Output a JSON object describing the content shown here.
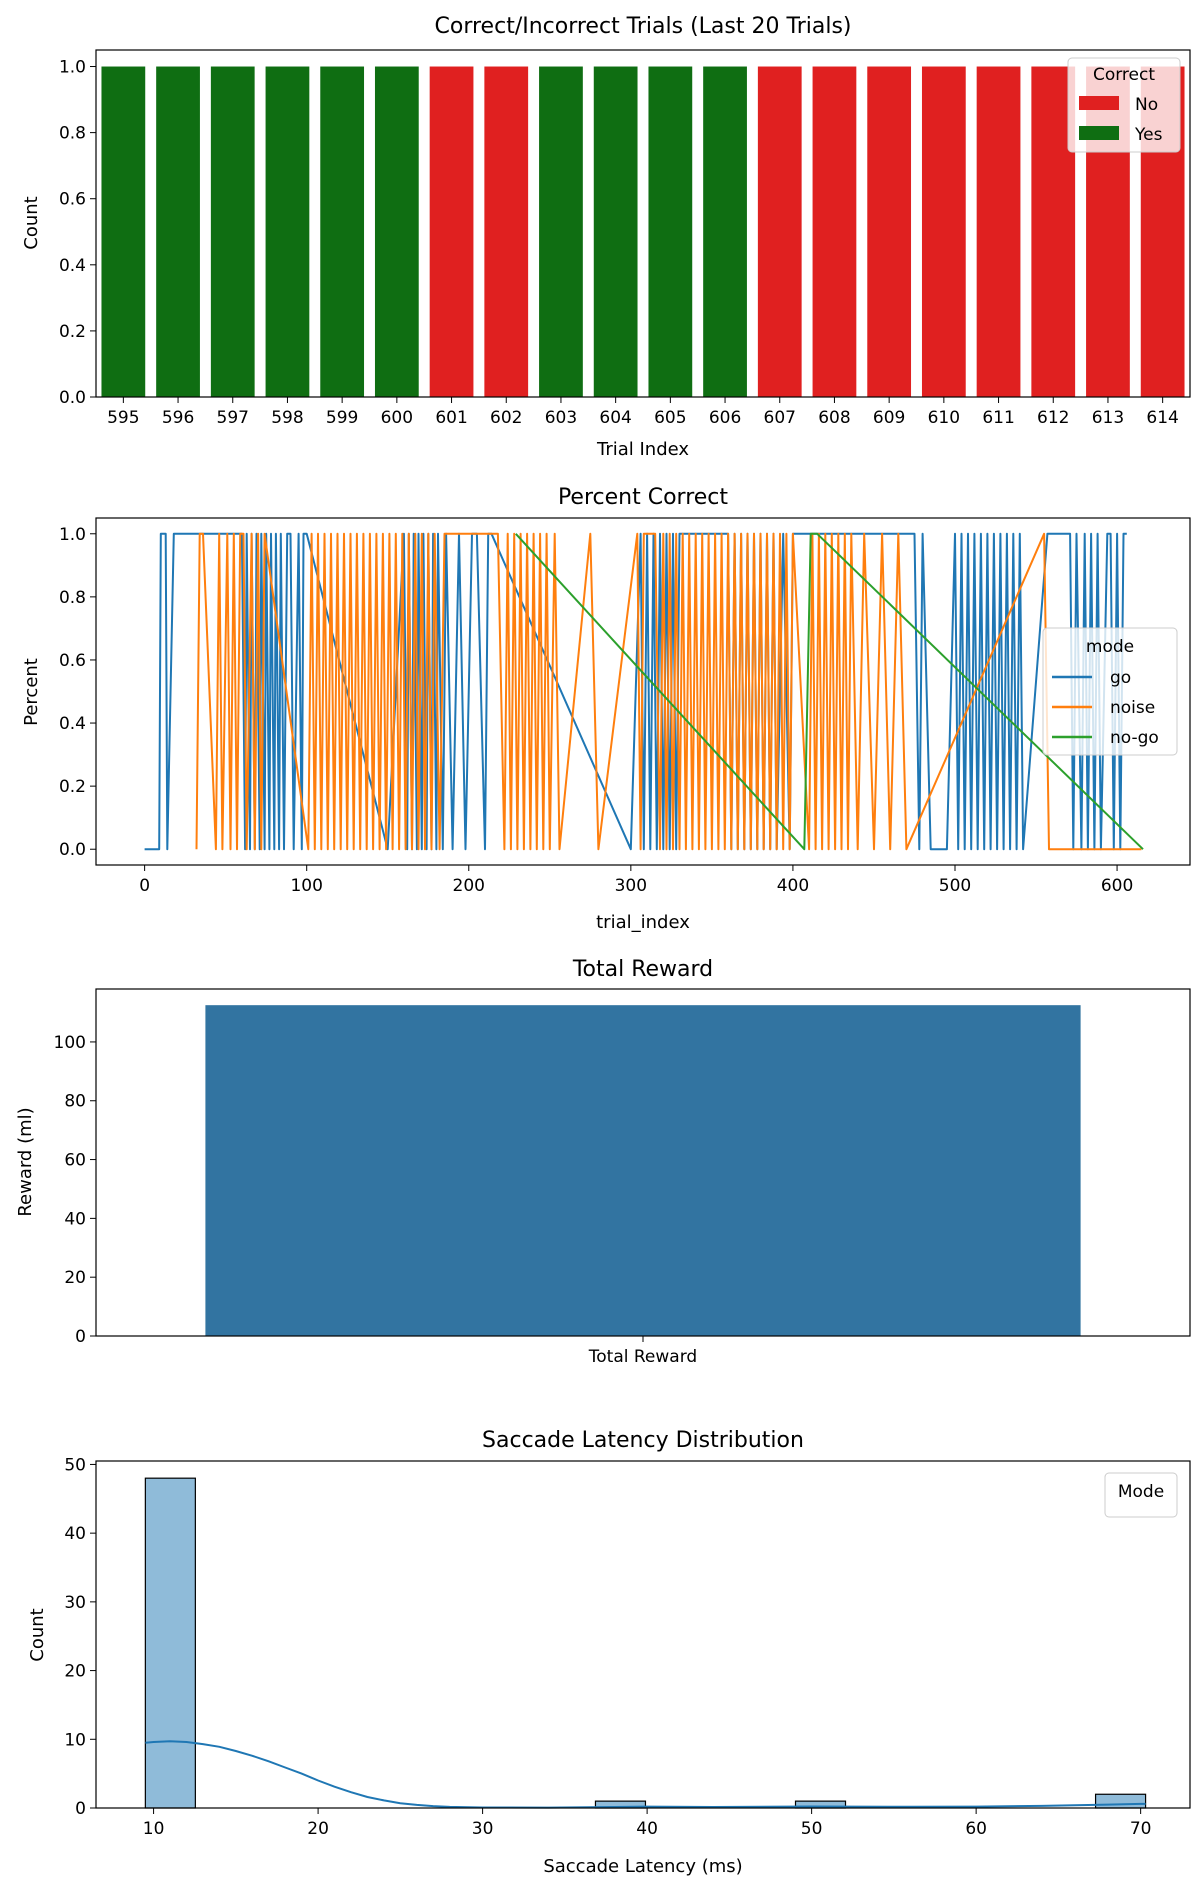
{
  "chart_data": [
    {
      "type": "bar",
      "title": "Correct/Incorrect Trials (Last 20 Trials)",
      "xlabel": "Trial Index",
      "ylabel": "Count",
      "ylim": [
        0,
        1.05
      ],
      "yticks": [
        "0.0",
        "0.2",
        "0.4",
        "0.6",
        "0.8",
        "1.0"
      ],
      "ytick_values": [
        0,
        0.2,
        0.4,
        0.6,
        0.8,
        1.0
      ],
      "categories": [
        "595",
        "596",
        "597",
        "598",
        "599",
        "600",
        "601",
        "602",
        "603",
        "604",
        "605",
        "606",
        "607",
        "608",
        "609",
        "610",
        "611",
        "612",
        "613",
        "614"
      ],
      "values": [
        1,
        1,
        1,
        1,
        1,
        1,
        1,
        1,
        1,
        1,
        1,
        1,
        1,
        1,
        1,
        1,
        1,
        1,
        1,
        1
      ],
      "correct": [
        "Yes",
        "Yes",
        "Yes",
        "Yes",
        "Yes",
        "Yes",
        "No",
        "No",
        "Yes",
        "Yes",
        "Yes",
        "Yes",
        "No",
        "No",
        "No",
        "No",
        "No",
        "No",
        "No",
        "No"
      ],
      "legend": {
        "title": "Correct",
        "placement": "top-right",
        "entries": [
          {
            "label": "No",
            "color": "#e02020"
          },
          {
            "label": "Yes",
            "color": "#0f6e12"
          }
        ]
      }
    },
    {
      "type": "line",
      "title": "Percent Correct",
      "xlabel": "trial_index",
      "ylabel": "Percent",
      "xlim": [
        -30,
        645
      ],
      "ylim": [
        -0.05,
        1.05
      ],
      "xticks": [
        "0",
        "100",
        "200",
        "300",
        "400",
        "500",
        "600"
      ],
      "xtick_values": [
        0,
        100,
        200,
        300,
        400,
        500,
        600
      ],
      "yticks": [
        "0.0",
        "0.2",
        "0.4",
        "0.6",
        "0.8",
        "1.0"
      ],
      "ytick_values": [
        0,
        0.2,
        0.4,
        0.6,
        0.8,
        1.0
      ],
      "legend": {
        "title": "mode",
        "placement": "center-right",
        "entries": [
          {
            "label": "go",
            "color": "#1f77b4"
          },
          {
            "label": "noise",
            "color": "#ff7f0e"
          },
          {
            "label": "no-go",
            "color": "#2ca02c"
          }
        ]
      },
      "series": [
        {
          "name": "go",
          "color": "#1f77b4",
          "x": [
            0,
            9,
            10,
            13,
            14,
            18,
            19,
            60,
            62,
            63,
            65,
            66,
            68,
            69,
            71,
            72,
            74,
            75,
            77,
            78,
            80,
            81,
            83,
            84,
            86,
            88,
            90,
            92,
            95,
            97,
            98,
            100,
            150,
            160,
            162,
            163,
            165,
            166,
            168,
            169,
            171,
            172,
            174,
            175,
            177,
            178,
            180,
            181,
            184,
            186,
            190,
            194,
            198,
            202,
            205,
            210,
            212,
            214,
            300,
            306,
            308,
            310,
            312,
            314,
            316,
            318,
            320,
            322,
            324,
            326,
            328,
            330,
            360,
            362,
            364,
            366,
            368,
            370,
            372,
            374,
            376,
            378,
            380,
            382,
            384,
            386,
            388,
            390,
            394,
            398,
            400,
            475,
            478,
            480,
            485,
            495,
            500,
            502,
            504,
            506,
            508,
            510,
            512,
            514,
            516,
            518,
            520,
            522,
            524,
            526,
            528,
            530,
            532,
            534,
            536,
            538,
            540,
            542,
            557,
            560,
            571,
            573,
            575,
            578,
            580,
            582,
            584,
            586,
            588,
            590,
            594,
            596,
            598,
            600,
            602,
            604,
            606
          ],
          "y": [
            0,
            0,
            1,
            1,
            0,
            1,
            1,
            1,
            0,
            1,
            0,
            1,
            0,
            1,
            0,
            1,
            0,
            1,
            0,
            1,
            0,
            1,
            0,
            1,
            0,
            1,
            1,
            0,
            1,
            0,
            1,
            1,
            0,
            1,
            0,
            1,
            0,
            1,
            0,
            1,
            0,
            1,
            0,
            1,
            0,
            1,
            0,
            1,
            0,
            1,
            0,
            1,
            0,
            1,
            1,
            0,
            1,
            1,
            0,
            1,
            0,
            1,
            0,
            1,
            0,
            1,
            0,
            1,
            0,
            1,
            0,
            1,
            1,
            0,
            1,
            0,
            1,
            0,
            1,
            0,
            1,
            0,
            1,
            0,
            1,
            0,
            1,
            0,
            1,
            0,
            1,
            1,
            0,
            1,
            0,
            0,
            1,
            0,
            1,
            0,
            1,
            0,
            1,
            0,
            1,
            0,
            1,
            0,
            1,
            0,
            1,
            0,
            1,
            0,
            1,
            0,
            1,
            0,
            1,
            1,
            1,
            0,
            1,
            0,
            1,
            0,
            1,
            0,
            1,
            0,
            1,
            1,
            0,
            1,
            0,
            1,
            1
          ]
        },
        {
          "name": "noise",
          "color": "#ff7f0e",
          "x": [
            32,
            34,
            36,
            44,
            46,
            48,
            51,
            53,
            55,
            57,
            59,
            61,
            63,
            66,
            68,
            70,
            72,
            74,
            101,
            103,
            105,
            107,
            109,
            111,
            113,
            115,
            117,
            119,
            121,
            123,
            125,
            127,
            129,
            131,
            133,
            135,
            137,
            139,
            141,
            143,
            145,
            147,
            149,
            151,
            153,
            155,
            157,
            159,
            161,
            163,
            165,
            167,
            169,
            171,
            173,
            175,
            177,
            179,
            182,
            185,
            218,
            222,
            224,
            226,
            228,
            230,
            232,
            234,
            236,
            238,
            240,
            242,
            244,
            246,
            248,
            250,
            253,
            256,
            275,
            280,
            304,
            306,
            308,
            315,
            318,
            320,
            322,
            324,
            326,
            328,
            330,
            332,
            334,
            336,
            338,
            340,
            342,
            344,
            346,
            348,
            350,
            352,
            354,
            356,
            358,
            360,
            362,
            364,
            366,
            368,
            370,
            372,
            374,
            376,
            378,
            380,
            382,
            384,
            386,
            388,
            390,
            392,
            394,
            396,
            398,
            400,
            410,
            412,
            414,
            416,
            418,
            420,
            422,
            424,
            426,
            428,
            430,
            432,
            434,
            436,
            440,
            444,
            450,
            455,
            460,
            465,
            470,
            555,
            558,
            560,
            615
          ],
          "y": [
            0,
            1,
            1,
            0,
            1,
            0,
            1,
            0,
            1,
            0,
            1,
            1,
            0,
            1,
            0,
            1,
            0,
            1,
            0,
            1,
            0,
            1,
            0,
            1,
            0,
            1,
            0,
            1,
            0,
            1,
            0,
            1,
            0,
            1,
            0,
            1,
            0,
            1,
            0,
            1,
            0,
            1,
            0,
            1,
            0,
            1,
            0,
            1,
            0,
            1,
            0,
            1,
            0,
            1,
            0,
            1,
            0,
            1,
            0,
            1,
            1,
            0,
            1,
            0,
            1,
            0,
            1,
            0,
            1,
            0,
            1,
            0,
            1,
            0,
            1,
            0,
            1,
            0,
            1,
            0,
            1,
            0,
            1,
            1,
            0,
            1,
            0,
            1,
            0,
            1,
            0,
            1,
            0,
            1,
            0,
            1,
            0,
            1,
            0,
            1,
            0,
            1,
            0,
            1,
            0,
            1,
            0,
            1,
            0,
            1,
            0,
            1,
            0,
            1,
            0,
            1,
            0,
            1,
            0,
            1,
            0,
            1,
            0,
            1,
            0,
            1,
            0,
            1,
            0,
            1,
            0,
            1,
            0,
            1,
            0,
            1,
            0,
            1,
            0,
            1,
            0,
            1,
            0,
            1,
            0,
            1,
            0,
            1,
            0,
            0,
            0
          ]
        },
        {
          "name": "no-go",
          "color": "#2ca02c",
          "x": [
            229,
            407,
            411,
            415,
            616
          ],
          "y": [
            1,
            0,
            1,
            1,
            0
          ]
        }
      ]
    },
    {
      "type": "bar",
      "title": "Total Reward",
      "xlabel": "",
      "ylabel": "Reward (ml)",
      "ylim": [
        0,
        118
      ],
      "yticks": [
        "0",
        "20",
        "40",
        "60",
        "80",
        "100"
      ],
      "ytick_values": [
        0,
        20,
        40,
        60,
        80,
        100
      ],
      "categories": [
        "Total Reward"
      ],
      "values": [
        112.5
      ],
      "color": "#3274a1"
    },
    {
      "type": "histogram",
      "title": "Saccade Latency Distribution",
      "xlabel": "Saccade Latency (ms)",
      "ylabel": "Count",
      "xlim": [
        6.5,
        73
      ],
      "ylim": [
        0,
        50.5
      ],
      "xticks": [
        "10",
        "20",
        "30",
        "40",
        "50",
        "60",
        "70"
      ],
      "xtick_values": [
        10,
        20,
        30,
        40,
        50,
        60,
        70
      ],
      "yticks": [
        "0",
        "10",
        "20",
        "30",
        "40",
        "50"
      ],
      "ytick_values": [
        0,
        10,
        20,
        30,
        40,
        50
      ],
      "bin_edges": [
        9.5,
        12.54,
        15.58,
        18.62,
        21.66,
        24.7,
        27.74,
        30.78,
        33.82,
        36.86,
        39.9,
        42.94,
        45.98,
        49.02,
        52.06,
        55.1,
        58.14,
        61.18,
        64.22,
        67.26,
        70.3
      ],
      "counts": [
        48,
        0,
        0,
        0,
        0,
        0,
        0,
        0,
        0,
        1,
        0,
        0,
        0,
        1,
        0,
        0,
        0,
        0,
        0,
        2
      ],
      "kde": {
        "x": [
          9.5,
          10,
          11,
          12,
          13,
          14,
          15,
          16,
          17,
          18,
          19,
          20,
          21,
          22,
          23,
          24,
          25,
          26,
          27,
          28,
          30,
          34,
          38,
          40,
          44,
          50,
          56,
          60,
          64,
          66,
          68,
          70,
          70.3
        ],
        "y": [
          9.5,
          9.6,
          9.7,
          9.6,
          9.3,
          8.9,
          8.3,
          7.6,
          6.8,
          5.9,
          5.0,
          4.0,
          3.1,
          2.3,
          1.6,
          1.1,
          0.7,
          0.45,
          0.28,
          0.16,
          0.08,
          0.06,
          0.15,
          0.2,
          0.15,
          0.22,
          0.18,
          0.2,
          0.3,
          0.4,
          0.5,
          0.6,
          0.6
        ]
      },
      "color": "#1f77b4",
      "legend": {
        "title": "Mode",
        "placement": "top-right",
        "entries": []
      }
    }
  ]
}
